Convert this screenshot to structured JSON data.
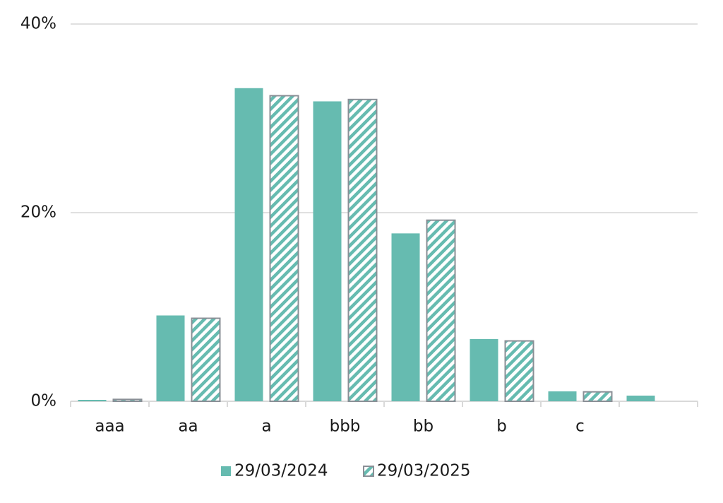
{
  "chart_data": {
    "type": "bar",
    "categories": [
      "aaa",
      "aa",
      "a",
      "bbb",
      "bb",
      "b",
      "c",
      null
    ],
    "series": [
      {
        "name": "29/03/2024",
        "color": "#66bbb0",
        "values": [
          0.15,
          9.1,
          33.2,
          31.8,
          17.8,
          6.6,
          1.05,
          0.6
        ]
      },
      {
        "name": "29/03/2025",
        "color": "#66bbb0",
        "hatch": true,
        "values": [
          0.2,
          8.8,
          32.4,
          32.0,
          19.2,
          6.4,
          1.0,
          null
        ]
      }
    ],
    "ylim": [
      0,
      40
    ],
    "yticks": [
      {
        "value": 0,
        "label": "0%"
      },
      {
        "value": 20,
        "label": "20%"
      },
      {
        "value": 40,
        "label": "40%"
      }
    ],
    "grid": true,
    "legend": "bottom"
  }
}
